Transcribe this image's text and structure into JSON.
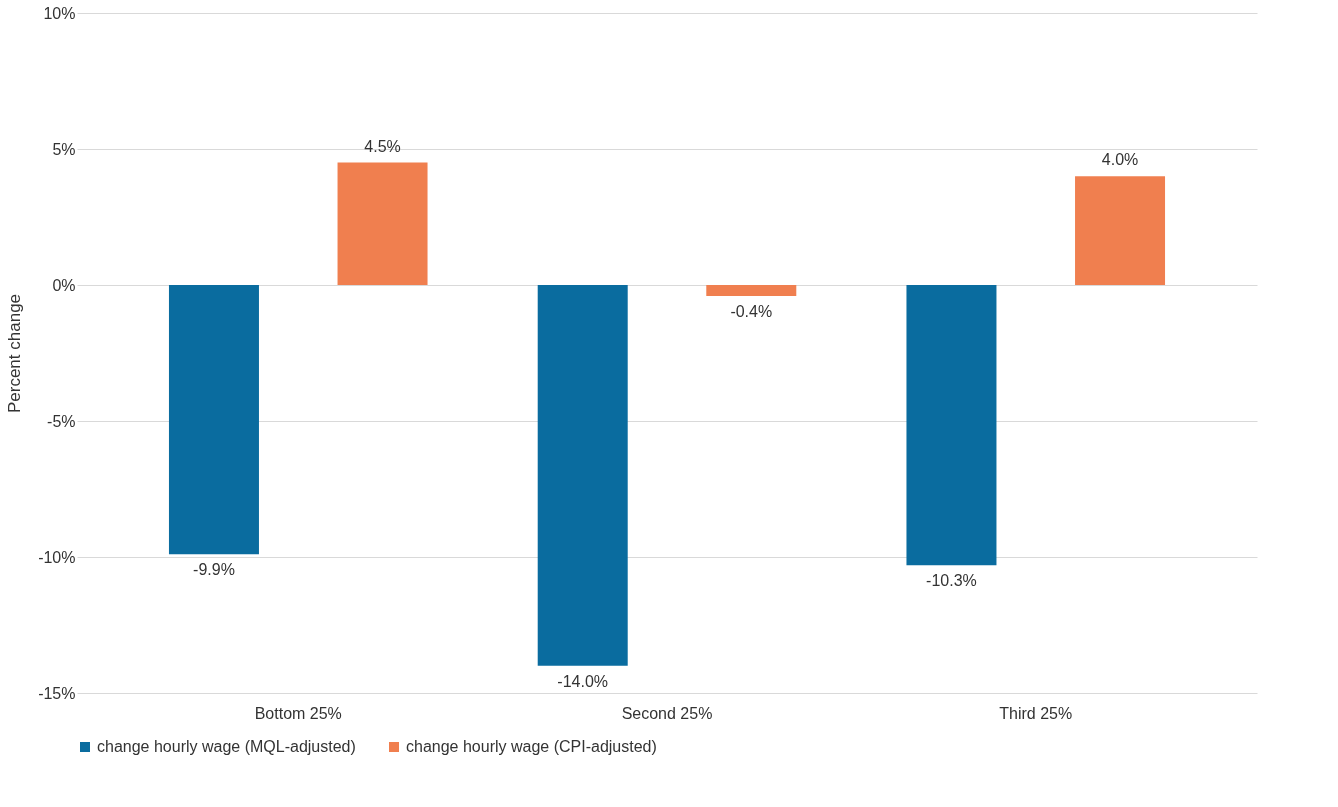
{
  "chart_data": {
    "type": "bar",
    "ylabel": "Percent change",
    "categories": [
      "Bottom 25%",
      "Second 25%",
      "Third 25%"
    ],
    "series": [
      {
        "name": "change hourly wage (MQL-adjusted)",
        "color": "#0a6c9f",
        "values": [
          -9.9,
          -14.0,
          -10.3
        ],
        "value_labels": [
          "-9.9%",
          "-14.0%",
          "-10.3%"
        ]
      },
      {
        "name": "change hourly wage (CPI-adjusted)",
        "color": "#f07f4f",
        "values": [
          4.5,
          -0.4,
          4.0
        ],
        "value_labels": [
          "4.5%",
          "-0.4%",
          "4.0%"
        ]
      }
    ],
    "ylim": [
      -15,
      10
    ],
    "yticks": [
      {
        "value": -15,
        "label": "-15%"
      },
      {
        "value": -10,
        "label": "-10%"
      },
      {
        "value": -5,
        "label": "-5%"
      },
      {
        "value": 0,
        "label": "0%"
      },
      {
        "value": 5,
        "label": "5%"
      },
      {
        "value": 10,
        "label": "10%"
      }
    ],
    "grid": "y",
    "legend": "bottom"
  }
}
